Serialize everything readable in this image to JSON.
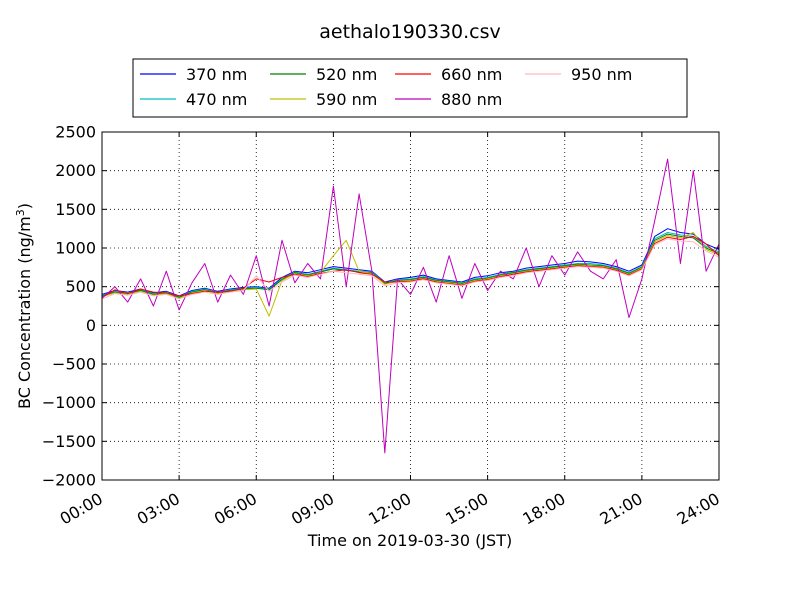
{
  "chart_data": {
    "type": "line",
    "title": "aethalo190330.csv",
    "xlabel": "Time on 2019-03-30 (JST)",
    "ylabel": "BC Concentration (ng/m",
    "ylabel_unit_superscript": "3",
    "ylabel_close": ")",
    "xlim_hours": [
      0,
      24
    ],
    "ylim": [
      -2000,
      2500
    ],
    "x_ticks": [
      {
        "hour": 0,
        "label": "00:00"
      },
      {
        "hour": 3,
        "label": "03:00"
      },
      {
        "hour": 6,
        "label": "06:00"
      },
      {
        "hour": 9,
        "label": "09:00"
      },
      {
        "hour": 12,
        "label": "12:00"
      },
      {
        "hour": 15,
        "label": "15:00"
      },
      {
        "hour": 18,
        "label": "18:00"
      },
      {
        "hour": 21,
        "label": "21:00"
      },
      {
        "hour": 24,
        "label": "24:00"
      }
    ],
    "y_ticks": [
      {
        "value": 2500,
        "label": "2500"
      },
      {
        "value": 2000,
        "label": "2000"
      },
      {
        "value": 1500,
        "label": "1500"
      },
      {
        "value": 1000,
        "label": "1000"
      },
      {
        "value": 500,
        "label": "500"
      },
      {
        "value": 0,
        "label": "0"
      },
      {
        "value": -500,
        "label": "−500"
      },
      {
        "value": -1000,
        "label": "−1000"
      },
      {
        "value": -1500,
        "label": "−1500"
      },
      {
        "value": -2000,
        "label": "−2000"
      }
    ],
    "grid": true,
    "legend_position": "top, above plot, 4 columns",
    "x_hours": [
      0,
      0.5,
      1,
      1.5,
      2,
      2.5,
      3,
      3.5,
      4,
      4.5,
      5,
      5.5,
      6,
      6.5,
      7,
      7.5,
      8,
      8.5,
      9,
      9.5,
      10,
      10.5,
      11,
      11.5,
      12,
      12.5,
      13,
      13.5,
      14,
      14.5,
      15,
      15.5,
      16,
      16.5,
      17,
      17.5,
      18,
      18.5,
      19,
      19.5,
      20,
      20.5,
      21,
      21.5,
      22,
      22.5,
      23,
      23.5,
      24
    ],
    "series": [
      {
        "name": "370 nm",
        "color": "#0000ff",
        "values": [
          400,
          450,
          430,
          470,
          420,
          440,
          380,
          450,
          480,
          440,
          470,
          490,
          500,
          480,
          620,
          700,
          680,
          720,
          760,
          740,
          720,
          700,
          560,
          600,
          620,
          650,
          600,
          580,
          560,
          620,
          640,
          680,
          700,
          740,
          760,
          780,
          800,
          830,
          820,
          800,
          760,
          700,
          780,
          1150,
          1250,
          1200,
          1180,
          1050,
          980
        ]
      },
      {
        "name": "470 nm",
        "color": "#00bfbf",
        "values": [
          390,
          440,
          420,
          460,
          410,
          430,
          370,
          440,
          470,
          430,
          460,
          480,
          490,
          470,
          600,
          690,
          660,
          700,
          740,
          720,
          700,
          690,
          550,
          590,
          600,
          630,
          590,
          570,
          550,
          600,
          620,
          660,
          690,
          720,
          740,
          760,
          780,
          800,
          800,
          780,
          740,
          680,
          760,
          1120,
          1200,
          1170,
          1150,
          1020,
          950
        ]
      },
      {
        "name": "520 nm",
        "color": "#008000",
        "values": [
          380,
          430,
          410,
          450,
          400,
          420,
          360,
          430,
          460,
          420,
          450,
          470,
          480,
          460,
          590,
          680,
          650,
          690,
          730,
          710,
          690,
          680,
          540,
          580,
          590,
          620,
          580,
          560,
          540,
          590,
          610,
          650,
          680,
          710,
          730,
          750,
          770,
          790,
          780,
          770,
          730,
          670,
          750,
          1100,
          1180,
          1150,
          1130,
          1000,
          930
        ]
      },
      {
        "name": "590 nm",
        "color": "#bfbf00",
        "values": [
          370,
          420,
          400,
          440,
          390,
          410,
          350,
          420,
          450,
          410,
          440,
          460,
          470,
          120,
          580,
          670,
          640,
          680,
          900,
          1100,
          700,
          670,
          530,
          570,
          580,
          610,
          570,
          550,
          530,
          580,
          600,
          640,
          670,
          700,
          720,
          740,
          760,
          780,
          770,
          760,
          720,
          660,
          740,
          1080,
          1160,
          1130,
          1200,
          980,
          910
        ]
      },
      {
        "name": "660 nm",
        "color": "#ff0000",
        "values": [
          360,
          460,
          410,
          470,
          430,
          420,
          380,
          410,
          440,
          430,
          440,
          480,
          600,
          560,
          620,
          660,
          630,
          670,
          700,
          720,
          680,
          660,
          560,
          560,
          570,
          600,
          560,
          540,
          520,
          570,
          590,
          630,
          660,
          690,
          710,
          730,
          750,
          770,
          760,
          750,
          710,
          650,
          730,
          1060,
          1140,
          1110,
          1150,
          1050,
          900
        ]
      },
      {
        "name": "880 nm",
        "color": "#bf00bf",
        "values": [
          350,
          500,
          300,
          600,
          250,
          700,
          200,
          550,
          800,
          300,
          650,
          400,
          900,
          250,
          1100,
          550,
          800,
          600,
          1800,
          500,
          1700,
          700,
          -1650,
          600,
          400,
          750,
          300,
          900,
          350,
          800,
          450,
          700,
          600,
          1000,
          500,
          900,
          650,
          950,
          700,
          600,
          850,
          100,
          600,
          1350,
          2150,
          800,
          2000,
          700,
          1050
        ]
      },
      {
        "name": "950 nm",
        "color": "#ffb6c1",
        "values": [
          340,
          410,
          390,
          430,
          380,
          400,
          340,
          400,
          430,
          400,
          430,
          450,
          640,
          440,
          560,
          650,
          620,
          660,
          700,
          680,
          660,
          640,
          510,
          550,
          560,
          590,
          550,
          530,
          510,
          560,
          580,
          620,
          640,
          680,
          700,
          720,
          740,
          760,
          750,
          740,
          700,
          640,
          720,
          1040,
          1120,
          1090,
          1080,
          960,
          880
        ]
      }
    ]
  }
}
